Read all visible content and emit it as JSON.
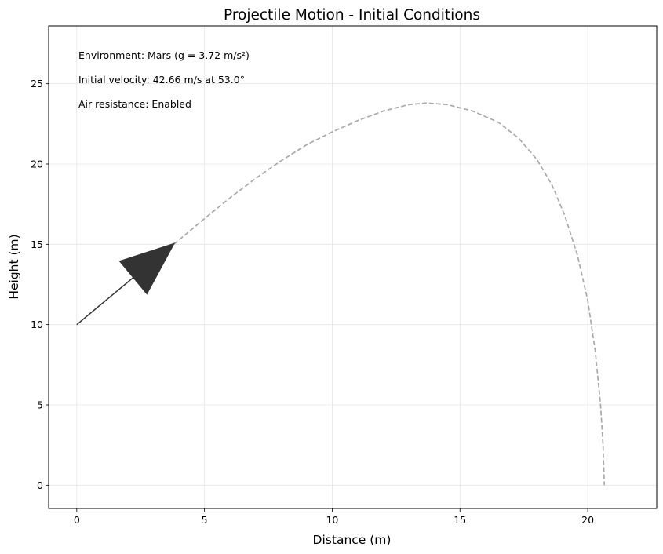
{
  "chart_data": {
    "type": "line",
    "title": "Projectile Motion - Initial Conditions",
    "xlabel": "Distance (m)",
    "ylabel": "Height (m)",
    "xlim": [
      -1.1,
      22.7
    ],
    "ylim": [
      -1.45,
      28.6
    ],
    "grid": true,
    "x_ticks": [
      0,
      5,
      10,
      15,
      20
    ],
    "y_ticks": [
      0,
      5,
      10,
      15,
      20,
      25
    ],
    "annotations": [
      "Environment: Mars (g = 3.72 m/s²)",
      "Initial velocity: 42.66 m/s at 53.0°",
      "Air resistance: Enabled"
    ],
    "series": [
      {
        "style": "dashed",
        "color": "#aaaaaa",
        "points": [
          [
            3.8,
            15.0
          ],
          [
            5.0,
            16.6
          ],
          [
            6.0,
            17.9
          ],
          [
            7.0,
            19.1
          ],
          [
            8.0,
            20.2
          ],
          [
            9.0,
            21.2
          ],
          [
            10.0,
            22.0
          ],
          [
            11.0,
            22.7
          ],
          [
            12.0,
            23.3
          ],
          [
            13.0,
            23.7
          ],
          [
            13.7,
            23.8
          ],
          [
            14.5,
            23.7
          ],
          [
            15.5,
            23.3
          ],
          [
            16.5,
            22.6
          ],
          [
            17.3,
            21.6
          ],
          [
            18.0,
            20.3
          ],
          [
            18.6,
            18.7
          ],
          [
            19.1,
            16.8
          ],
          [
            19.6,
            14.3
          ],
          [
            20.0,
            11.5
          ],
          [
            20.3,
            8.3
          ],
          [
            20.5,
            5.0
          ],
          [
            20.6,
            2.5
          ],
          [
            20.65,
            0.0
          ]
        ]
      }
    ],
    "velocity_arrow": {
      "start": [
        0,
        10
      ],
      "end": [
        3.85,
        15.1
      ],
      "color": "#333333"
    }
  }
}
